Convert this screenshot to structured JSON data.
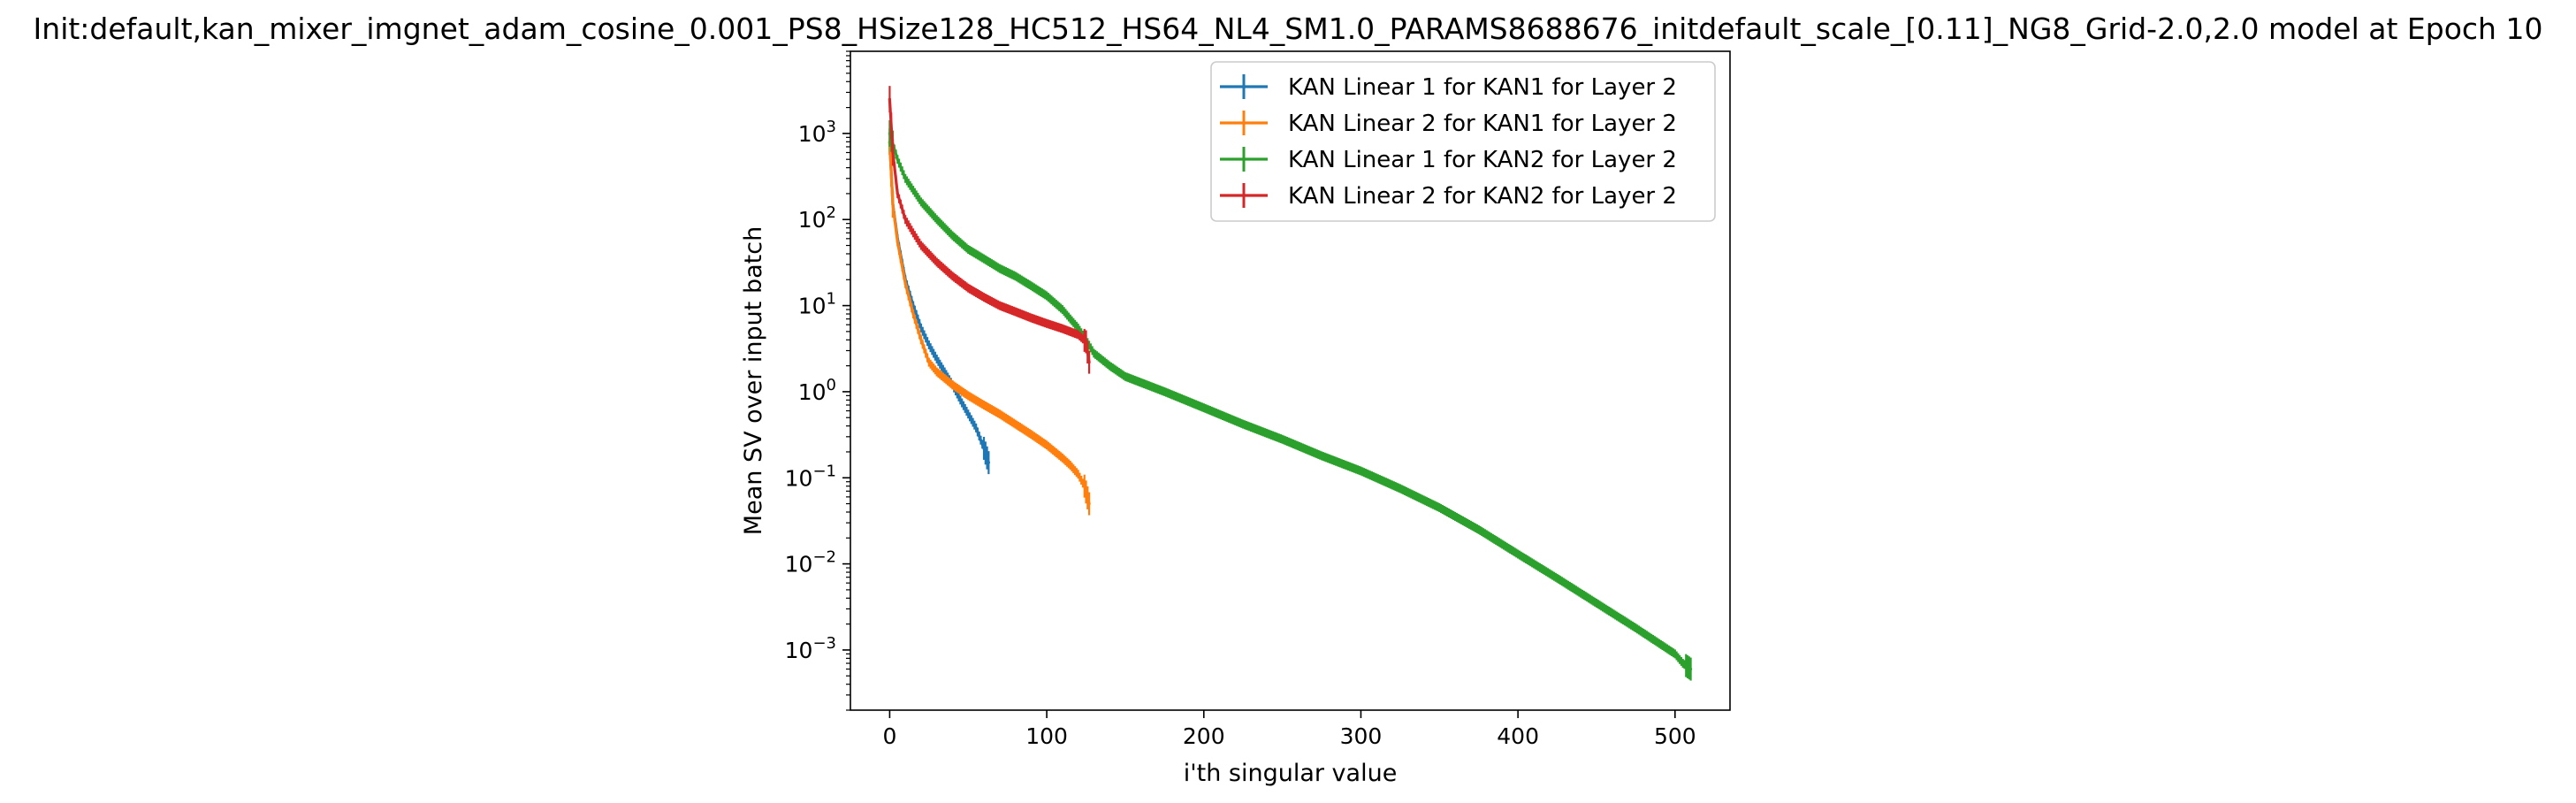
{
  "chart_data": {
    "type": "line",
    "title": "Init:default,kan_mixer_imgnet_adam_cosine_0.001_PS8_HSize128_HC512_HS64_NL4_SM1.0_PARAMS8688676_initdefault_scale_[0.11]_NG8_Grid-2.0,2.0 model at Epoch 10",
    "xlabel": "i'th singular value",
    "ylabel": "Mean SV over input batch",
    "y_scale": "log",
    "xlim": [
      -25,
      535
    ],
    "ylim": [
      0.0002,
      9000
    ],
    "x_ticks": [
      0,
      100,
      200,
      300,
      400,
      500
    ],
    "y_ticks": [
      {
        "value": 0.001,
        "base": "10",
        "exp": "−3"
      },
      {
        "value": 0.01,
        "base": "10",
        "exp": "−2"
      },
      {
        "value": 0.1,
        "base": "10",
        "exp": "−1"
      },
      {
        "value": 1,
        "base": "10",
        "exp": "0"
      },
      {
        "value": 10,
        "base": "10",
        "exp": "1"
      },
      {
        "value": 100,
        "base": "10",
        "exp": "2"
      },
      {
        "value": 1000,
        "base": "10",
        "exp": "3"
      }
    ],
    "grid": false,
    "legend_position": "top-right",
    "error_bars": true,
    "series": [
      {
        "name": "KAN Linear 1 for KAN1 for Layer 2",
        "color": "#1f77b4",
        "x": [
          0,
          2,
          5,
          10,
          15,
          20,
          25,
          30,
          35,
          40,
          45,
          50,
          55,
          60,
          63
        ],
        "y": [
          800,
          150,
          60,
          20,
          10,
          5.5,
          3.5,
          2.4,
          1.7,
          1.2,
          0.8,
          0.55,
          0.38,
          0.22,
          0.15
        ]
      },
      {
        "name": "KAN Linear 2 for KAN1 for Layer 2",
        "color": "#ff7f0e",
        "x": [
          0,
          2,
          5,
          10,
          15,
          20,
          25,
          30,
          40,
          50,
          60,
          70,
          80,
          90,
          100,
          110,
          115,
          120,
          124,
          127
        ],
        "y": [
          800,
          150,
          55,
          18,
          8,
          4,
          2.2,
          1.7,
          1.2,
          0.9,
          0.7,
          0.55,
          0.42,
          0.32,
          0.24,
          0.17,
          0.14,
          0.11,
          0.08,
          0.05
        ]
      },
      {
        "name": "KAN Linear 1 for KAN2 for Layer 2",
        "color": "#2ca02c",
        "x": [
          0,
          5,
          10,
          20,
          30,
          40,
          50,
          60,
          70,
          80,
          90,
          100,
          110,
          115,
          120,
          125,
          130,
          140,
          150,
          175,
          200,
          225,
          250,
          275,
          300,
          325,
          350,
          375,
          400,
          425,
          450,
          475,
          500,
          505,
          510
        ],
        "y": [
          1000,
          500,
          300,
          160,
          100,
          65,
          45,
          35,
          27,
          22,
          17,
          13,
          9,
          7,
          5.5,
          4,
          2.8,
          2,
          1.5,
          1,
          0.65,
          0.42,
          0.28,
          0.18,
          0.12,
          0.075,
          0.045,
          0.025,
          0.013,
          0.0068,
          0.0035,
          0.0018,
          0.0009,
          0.0007,
          0.0006
        ]
      },
      {
        "name": "KAN Linear 2 for KAN2 for Layer 2",
        "color": "#d62728",
        "x": [
          0,
          2,
          5,
          10,
          15,
          20,
          30,
          40,
          50,
          60,
          70,
          80,
          90,
          100,
          110,
          120,
          125,
          127
        ],
        "y": [
          2500,
          600,
          200,
          100,
          70,
          50,
          32,
          22,
          16,
          12.5,
          10,
          8.5,
          7.2,
          6.2,
          5.4,
          4.6,
          3.8,
          2.2
        ]
      }
    ]
  }
}
